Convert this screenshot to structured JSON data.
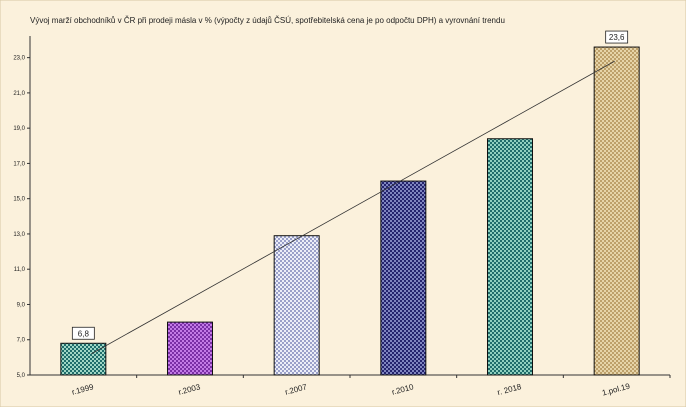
{
  "chart_data": {
    "type": "bar",
    "title": "Vývoj marží obchodníků v ČR při prodeji másla v % (výpočty z údajů ČSÚ, spotřebitelská cena je po odpočtu DPH) a vyrovnání trendu",
    "xlabel": "",
    "ylabel": "",
    "categories": [
      "r.1999",
      "r.2003",
      "r.2007",
      "r.2010",
      "r. 2018",
      "1.pol.19"
    ],
    "values": [
      6.8,
      8.0,
      12.9,
      16.0,
      18.4,
      23.6
    ],
    "data_labels": {
      "0": "6,8",
      "5": "23,6"
    },
    "ylim": [
      5.0,
      24.0
    ],
    "yticks": [
      5.0,
      7.0,
      9.0,
      11.0,
      13.0,
      15.0,
      17.0,
      19.0,
      21.0,
      23.0
    ],
    "ytick_labels": [
      "5,0",
      "7,0",
      "9,0",
      "11,0",
      "13,0",
      "15,0",
      "17,0",
      "19,0",
      "21,0",
      "23,0"
    ],
    "trendline": {
      "type": "linear",
      "start": 6.2,
      "end": 22.8
    },
    "grid": false,
    "legend": "none",
    "bar_colors": [
      {
        "a": "#1f6d6b",
        "b": "#9fd6c5"
      },
      {
        "a": "#7a2fa6",
        "b": "#c27ae6"
      },
      {
        "a": "#9aa0c9",
        "b": "#eceef8"
      },
      {
        "a": "#24246e",
        "b": "#7f85bf"
      },
      {
        "a": "#1f6d6b",
        "b": "#8fd0bf"
      },
      {
        "a": "#bda06a",
        "b": "#e6d4a8"
      }
    ],
    "background_color": "#fbf1dc"
  }
}
